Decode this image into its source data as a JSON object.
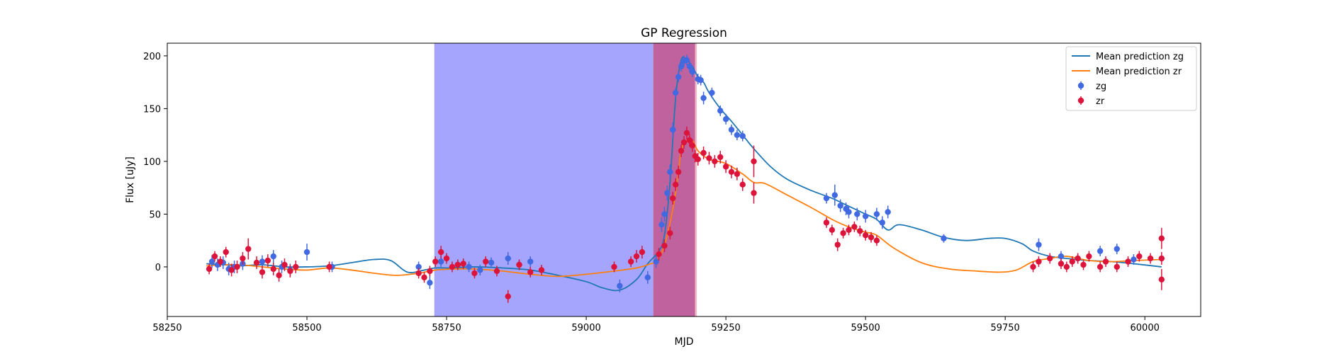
{
  "chart_data": {
    "type": "scatter",
    "title": "GP Regression",
    "xlabel": "MJD",
    "ylabel": "Flux [uJy]",
    "xlim": [
      58250,
      60100
    ],
    "ylim": [
      -47,
      212
    ],
    "xticks": [
      58250,
      58500,
      58750,
      59000,
      59250,
      59500,
      59750,
      60000
    ],
    "yticks": [
      0,
      50,
      100,
      150,
      200
    ],
    "grid": false,
    "legend_position": "top-right",
    "legend": [
      "Mean prediction zg",
      "Mean prediction zr",
      "zg",
      "zr"
    ],
    "colors": {
      "zg_line": "#1f77b4",
      "zr_line": "#ff7f0e",
      "zg_points": "#4169e1",
      "zr_points": "#dc143c",
      "span_blue": "#a5a5fd",
      "span_purple": "#c0629e",
      "span_pink": "#f4b8c4"
    },
    "spans": [
      {
        "x0": 58728,
        "x1": 59120,
        "color": "#a5a5fd"
      },
      {
        "x0": 59120,
        "x1": 59195,
        "color": "#c0629e"
      },
      {
        "x0": 59195,
        "x1": 59198,
        "color": "#f4b8c4"
      }
    ],
    "series": [
      {
        "name": "Mean prediction zg",
        "kind": "line",
        "x": [
          58320,
          58350,
          58380,
          58420,
          58460,
          58500,
          58540,
          58580,
          58620,
          58650,
          58680,
          58710,
          58730,
          58760,
          58800,
          58850,
          58900,
          58950,
          59000,
          59030,
          59060,
          59090,
          59110,
          59130,
          59140,
          59150,
          59160,
          59170,
          59180,
          59190,
          59200,
          59210,
          59220,
          59240,
          59260,
          59280,
          59300,
          59330,
          59360,
          59400,
          59440,
          59460,
          59480,
          59500,
          59520,
          59540,
          59560,
          59600,
          59640,
          59680,
          59720,
          59750,
          59780,
          59800,
          59830,
          59860,
          59900,
          59940,
          59980,
          60030
        ],
        "y": [
          3,
          2,
          1,
          2,
          0,
          0,
          1,
          4,
          7,
          6,
          -5,
          -3,
          -1,
          -1,
          0,
          -1,
          -3,
          -8,
          -14,
          -20,
          -22,
          -12,
          3,
          15,
          30,
          80,
          160,
          196,
          196,
          190,
          180,
          175,
          165,
          150,
          138,
          125,
          112,
          95,
          83,
          73,
          65,
          60,
          55,
          50,
          45,
          35,
          40,
          35,
          28,
          25,
          27,
          27,
          22,
          15,
          10,
          8,
          6,
          5,
          3,
          0
        ]
      },
      {
        "name": "Mean prediction zr",
        "kind": "line",
        "x": [
          58320,
          58350,
          58380,
          58420,
          58460,
          58500,
          58540,
          58580,
          58620,
          58660,
          58700,
          58730,
          58760,
          58800,
          58850,
          58900,
          58950,
          59000,
          59050,
          59090,
          59110,
          59130,
          59145,
          59160,
          59170,
          59180,
          59190,
          59200,
          59220,
          59250,
          59280,
          59300,
          59320,
          59360,
          59400,
          59440,
          59460,
          59480,
          59500,
          59520,
          59550,
          59600,
          59650,
          59700,
          59740,
          59770,
          59800,
          59830,
          59860,
          59900,
          59940,
          59980,
          60030
        ],
        "y": [
          1,
          2,
          2,
          0,
          -2,
          -3,
          -1,
          -3,
          -6,
          -8,
          -6,
          -3,
          -2,
          -2,
          -4,
          -7,
          -9,
          -7,
          -4,
          -1,
          2,
          8,
          30,
          70,
          110,
          120,
          120,
          110,
          102,
          98,
          88,
          80,
          79,
          68,
          57,
          45,
          40,
          36,
          33,
          30,
          18,
          4,
          -2,
          -4,
          -5,
          -3,
          5,
          8,
          10,
          6,
          5,
          6,
          7
        ]
      },
      {
        "name": "zg",
        "kind": "errorbar",
        "x": [
          58330,
          58340,
          58350,
          58360,
          58370,
          58385,
          58420,
          58440,
          58455,
          58470,
          58500,
          58545,
          58700,
          58720,
          58740,
          58770,
          58790,
          58810,
          58830,
          58860,
          58880,
          58900,
          59060,
          59110,
          59125,
          59135,
          59140,
          59145,
          59150,
          59155,
          59160,
          59165,
          59170,
          59175,
          59180,
          59185,
          59190,
          59200,
          59205,
          59210,
          59225,
          59240,
          59250,
          59260,
          59270,
          59280,
          59430,
          59445,
          59455,
          59465,
          59470,
          59485,
          59500,
          59520,
          59530,
          59540,
          59640,
          59810,
          59850,
          59880,
          59920,
          59950,
          59980
        ],
        "y": [
          5,
          2,
          4,
          -2,
          0,
          3,
          5,
          10,
          0,
          -3,
          14,
          0,
          0,
          -15,
          5,
          2,
          0,
          -3,
          4,
          8,
          2,
          5,
          -18,
          -10,
          5,
          40,
          50,
          70,
          90,
          130,
          165,
          180,
          190,
          195,
          196,
          190,
          185,
          178,
          177,
          160,
          165,
          148,
          140,
          130,
          125,
          124,
          65,
          68,
          58,
          55,
          52,
          50,
          48,
          50,
          42,
          52,
          27,
          21,
          10,
          8,
          15,
          17,
          7
        ],
        "err": [
          6,
          6,
          6,
          6,
          6,
          6,
          6,
          6,
          6,
          6,
          8,
          5,
          5,
          6,
          5,
          5,
          5,
          5,
          5,
          6,
          5,
          5,
          6,
          6,
          6,
          7,
          7,
          7,
          7,
          7,
          5,
          5,
          5,
          5,
          5,
          5,
          5,
          5,
          5,
          6,
          5,
          5,
          5,
          5,
          5,
          5,
          5,
          10,
          6,
          6,
          6,
          6,
          6,
          6,
          6,
          6,
          4,
          6,
          5,
          5,
          5,
          5,
          5
        ]
      },
      {
        "name": "zr",
        "kind": "errorbar",
        "x": [
          58325,
          58335,
          58345,
          58355,
          58365,
          58375,
          58385,
          58395,
          58410,
          58420,
          58430,
          58440,
          58450,
          58460,
          58470,
          58480,
          58540,
          58700,
          58710,
          58720,
          58730,
          58740,
          58750,
          58760,
          58770,
          58780,
          58800,
          58820,
          58840,
          58860,
          58880,
          58900,
          58920,
          59050,
          59080,
          59090,
          59100,
          59130,
          59140,
          59150,
          59155,
          59160,
          59165,
          59170,
          59175,
          59180,
          59185,
          59190,
          59195,
          59200,
          59210,
          59220,
          59230,
          59240,
          59250,
          59260,
          59270,
          59280,
          59300,
          59300,
          59430,
          59440,
          59450,
          59460,
          59470,
          59480,
          59490,
          59500,
          59510,
          59520,
          59800,
          59810,
          59830,
          59850,
          59860,
          59870,
          59880,
          59890,
          59900,
          59920,
          59930,
          59950,
          59970,
          59990,
          60010,
          60030,
          60030,
          60030
        ],
        "y": [
          -2,
          10,
          5,
          14,
          -3,
          0,
          8,
          17,
          4,
          -5,
          6,
          -2,
          -8,
          2,
          -4,
          0,
          0,
          -6,
          -10,
          -4,
          5,
          14,
          8,
          0,
          2,
          3,
          -6,
          5,
          -4,
          -28,
          2,
          -5,
          -3,
          0,
          5,
          10,
          14,
          12,
          20,
          32,
          65,
          78,
          90,
          110,
          118,
          127,
          120,
          115,
          105,
          102,
          108,
          103,
          100,
          104,
          95,
          90,
          88,
          78,
          100,
          70,
          42,
          35,
          21,
          32,
          35,
          38,
          34,
          30,
          28,
          25,
          0,
          5,
          8,
          3,
          0,
          5,
          8,
          2,
          10,
          0,
          5,
          0,
          5,
          10,
          8,
          27,
          8,
          -12
        ],
        "err": [
          5,
          5,
          5,
          5,
          6,
          6,
          6,
          10,
          6,
          6,
          6,
          6,
          6,
          6,
          6,
          6,
          5,
          5,
          5,
          5,
          5,
          6,
          5,
          5,
          5,
          5,
          5,
          5,
          5,
          6,
          5,
          5,
          5,
          5,
          5,
          6,
          6,
          6,
          6,
          6,
          6,
          6,
          6,
          6,
          6,
          6,
          6,
          6,
          6,
          6,
          6,
          6,
          6,
          6,
          6,
          6,
          6,
          6,
          15,
          10,
          5,
          5,
          6,
          5,
          5,
          5,
          5,
          5,
          5,
          5,
          5,
          5,
          5,
          5,
          5,
          5,
          5,
          5,
          5,
          5,
          5,
          5,
          5,
          5,
          5,
          10,
          6,
          10
        ]
      }
    ]
  }
}
